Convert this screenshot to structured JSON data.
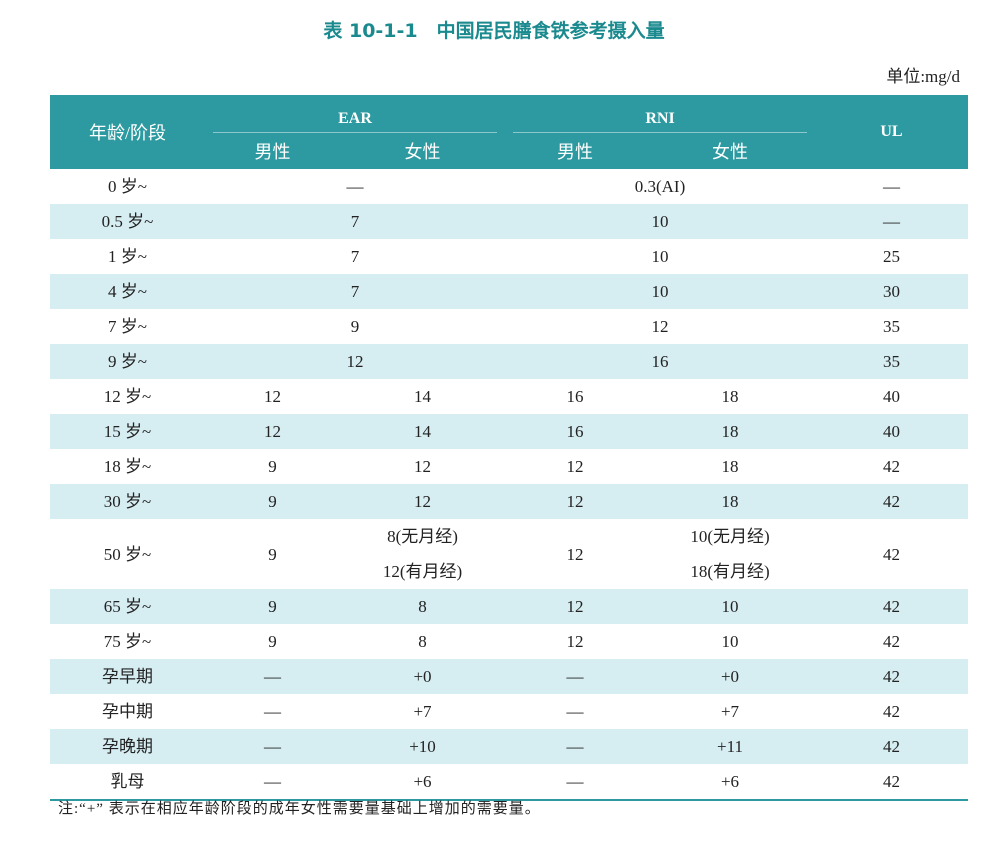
{
  "header": {
    "title": "表 10-1-1　中国居民膳食铁参考摄入量",
    "unit": "单位:mg/d"
  },
  "table": {
    "columns": {
      "age": "年龄/阶段",
      "ear": "EAR",
      "rni": "RNI",
      "ul": "UL",
      "male": "男性",
      "female": "女性"
    },
    "rows": [
      [
        "0 岁~",
        "—",
        "0.3(AI)",
        "—"
      ],
      [
        "0.5 岁~",
        "7",
        "10",
        "—"
      ],
      [
        "1 岁~",
        "7",
        "10",
        "25"
      ],
      [
        "4 岁~",
        "7",
        "10",
        "30"
      ],
      [
        "7 岁~",
        "9",
        "12",
        "35"
      ],
      [
        "9 岁~",
        "12",
        "16",
        "35"
      ],
      [
        "12 岁~",
        "12",
        "14",
        "16",
        "18",
        "40"
      ],
      [
        "15 岁~",
        "12",
        "14",
        "16",
        "18",
        "40"
      ],
      [
        "18 岁~",
        "9",
        "12",
        "12",
        "18",
        "42"
      ],
      [
        "30 岁~",
        "9",
        "12",
        "12",
        "18",
        "42"
      ],
      [
        "50 岁~",
        "9",
        [
          "8(无月经)",
          "12(有月经)"
        ],
        "12",
        [
          "10(无月经)",
          "18(有月经)"
        ],
        "42"
      ],
      [
        "65 岁~",
        "9",
        "8",
        "12",
        "10",
        "42"
      ],
      [
        "75 岁~",
        "9",
        "8",
        "12",
        "10",
        "42"
      ],
      [
        "孕早期",
        "—",
        "+0",
        "—",
        "+0",
        "42"
      ],
      [
        "孕中期",
        "—",
        "+7",
        "—",
        "+7",
        "42"
      ],
      [
        "孕晚期",
        "—",
        "+10",
        "—",
        "+11",
        "42"
      ],
      [
        "乳母",
        "—",
        "+6",
        "—",
        "+6",
        "42"
      ]
    ]
  },
  "note": "注:“+” 表示在相应年龄阶段的成年女性需要量基础上增加的需要量。"
}
